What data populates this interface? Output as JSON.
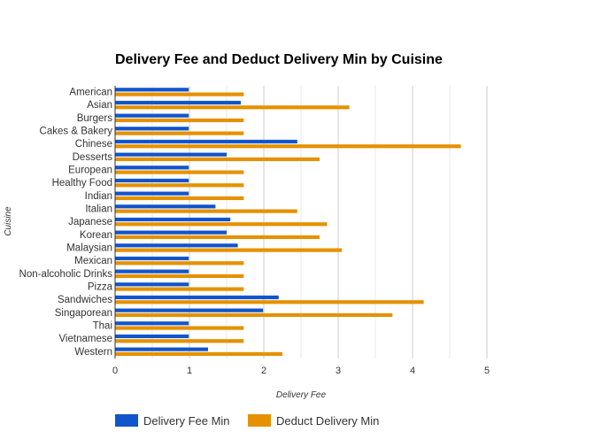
{
  "chart_data": {
    "type": "bar",
    "orientation": "horizontal",
    "title": "Delivery Fee and Deduct Delivery Min by Cuisine",
    "xlabel": "Delivery Fee",
    "ylabel": "Cuisine",
    "xlim": [
      0,
      5
    ],
    "xticks": [
      "0",
      "1",
      "2",
      "3",
      "4",
      "5"
    ],
    "grid": true,
    "legend_position": "bottom-left",
    "categories": [
      "American",
      "Asian",
      "Burgers",
      "Cakes & Bakery",
      "Chinese",
      "Desserts",
      "European",
      "Healthy Food",
      "Indian",
      "Italian",
      "Japanese",
      "Korean",
      "Malaysian",
      "Mexican",
      "Non-alcoholic Drinks",
      "Pizza",
      "Sandwiches",
      "Singaporean",
      "Thai",
      "Vietnamese",
      "Western"
    ],
    "series": [
      {
        "name": "Delivery Fee Min",
        "color": "#1155cc",
        "values": [
          0.99,
          1.69,
          0.99,
          0.99,
          2.45,
          1.5,
          0.99,
          0.99,
          0.99,
          1.35,
          1.55,
          1.5,
          1.65,
          0.99,
          0.99,
          0.99,
          2.2,
          1.99,
          0.99,
          0.99,
          1.25
        ]
      },
      {
        "name": "Deduct Delivery Min",
        "color": "#e69100",
        "values": [
          1.73,
          3.15,
          1.73,
          1.73,
          4.65,
          2.75,
          1.73,
          1.73,
          1.73,
          2.45,
          2.85,
          2.75,
          3.05,
          1.73,
          1.73,
          1.73,
          4.15,
          3.73,
          1.73,
          1.73,
          2.25
        ]
      }
    ]
  }
}
